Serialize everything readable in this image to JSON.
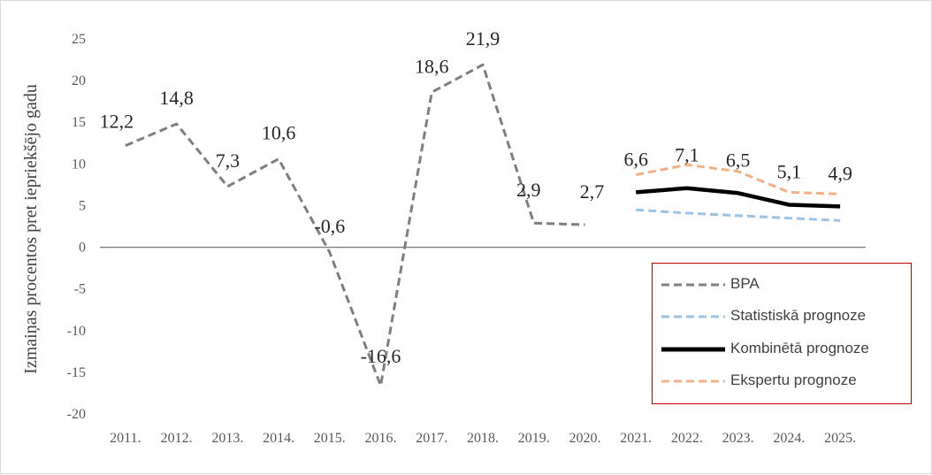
{
  "chart_data": {
    "type": "line",
    "ylabel": "Izmaiņas procentos pret iepriekšējo gadu",
    "ylim": [
      -20,
      25
    ],
    "y_ticks": [
      "25",
      "20",
      "15",
      "10",
      "5",
      "0",
      "-5",
      "-10",
      "-15",
      "-20"
    ],
    "categories": [
      "2011.",
      "2012.",
      "2013.",
      "2014.",
      "2015.",
      "2016.",
      "2017.",
      "2018.",
      "2019.",
      "2020.",
      "2021.",
      "2022.",
      "2023.",
      "2024.",
      "2025."
    ],
    "series": [
      {
        "name": "BPA",
        "values": [
          12.2,
          14.8,
          7.3,
          10.6,
          -0.6,
          -16.6,
          18.6,
          21.9,
          2.9,
          2.7,
          null,
          null,
          null,
          null,
          null
        ],
        "labels": [
          "12,2",
          "14,8",
          "7,3",
          "10,6",
          "-0,6",
          "-16,6",
          "18,6",
          "21,9",
          "2,9",
          "2,7",
          null,
          null,
          null,
          null,
          null
        ],
        "color": "#7f7f7f",
        "style": "dashed"
      },
      {
        "name": "Statistiskā prognoze",
        "values": [
          null,
          null,
          null,
          null,
          null,
          null,
          null,
          null,
          null,
          null,
          4.5,
          4.1,
          3.8,
          3.5,
          3.2
        ],
        "color": "#9dc3e6",
        "style": "dashed"
      },
      {
        "name": "Kombinētā prognoze",
        "values": [
          null,
          null,
          null,
          null,
          null,
          null,
          null,
          null,
          null,
          null,
          6.6,
          7.1,
          6.5,
          5.1,
          4.9
        ],
        "labels": [
          null,
          null,
          null,
          null,
          null,
          null,
          null,
          null,
          null,
          null,
          "6,6",
          "7,1",
          "6,5",
          "5,1",
          "4,9"
        ],
        "color": "#000000",
        "style": "solid"
      },
      {
        "name": "Ekspertu prognoze",
        "values": [
          null,
          null,
          null,
          null,
          null,
          null,
          null,
          null,
          null,
          null,
          8.7,
          9.9,
          9.1,
          6.6,
          6.4
        ],
        "color": "#f4b183",
        "style": "dashed"
      }
    ],
    "legend_position": "right"
  }
}
